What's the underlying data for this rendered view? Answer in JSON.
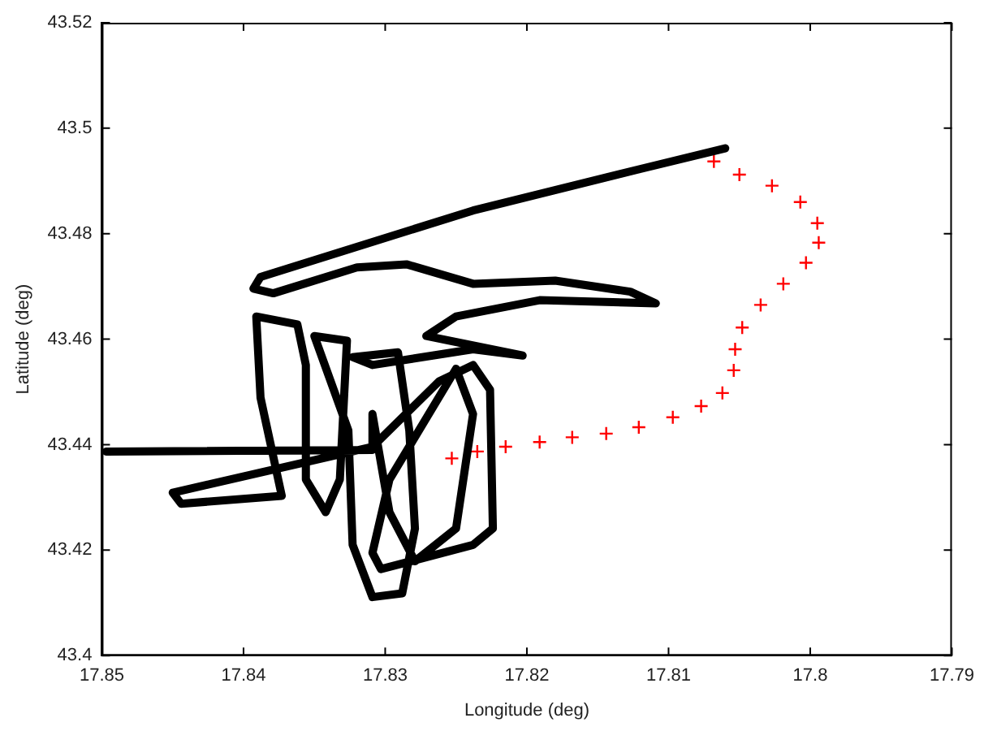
{
  "chart_data": {
    "type": "line",
    "xlabel": "Longitude (deg)",
    "ylabel": "Latitude (deg)",
    "xlim": [
      17.85,
      17.79
    ],
    "xticks": [
      17.85,
      17.84,
      17.83,
      17.82,
      17.81,
      17.8,
      17.79
    ],
    "ylim": [
      43.4,
      43.52
    ],
    "yticks": [
      43.4,
      43.42,
      43.44,
      43.46,
      43.48,
      43.5,
      43.52
    ],
    "grid": false,
    "legend": false,
    "series": [
      {
        "type": "line",
        "color": "#000000",
        "marker": "none",
        "x": [
          17.806,
          17.8121,
          17.8238,
          17.8388,
          17.8393,
          17.8379,
          17.832,
          17.8285,
          17.8238,
          17.818,
          17.8127,
          17.8109,
          17.8191,
          17.825,
          17.8271,
          17.8203,
          17.8238,
          17.8309,
          17.8323,
          17.8291,
          17.8283,
          17.8279,
          17.8288,
          17.8309,
          17.8323,
          17.8326,
          17.835,
          17.8327,
          17.8332,
          17.8342,
          17.8356,
          17.8356,
          17.8362,
          17.8391,
          17.8388,
          17.8373,
          17.8444,
          17.845,
          17.8309,
          17.8262,
          17.8238,
          17.8226,
          17.8224,
          17.8238,
          17.8303,
          17.8309,
          17.8297,
          17.825,
          17.8238,
          17.825,
          17.8279,
          17.8297,
          17.8309,
          17.8309,
          17.8497
        ],
        "values": [
          43.4962,
          43.4922,
          43.4844,
          43.4718,
          43.4696,
          43.4687,
          43.4736,
          43.4742,
          43.4705,
          43.4711,
          43.469,
          43.4668,
          43.4674,
          43.4643,
          43.4606,
          43.4569,
          43.4581,
          43.4551,
          43.4566,
          43.4575,
          43.4427,
          43.4241,
          43.4118,
          43.4111,
          43.421,
          43.4427,
          43.4606,
          43.4597,
          43.4334,
          43.4272,
          43.4334,
          43.4551,
          43.4628,
          43.4643,
          43.4489,
          43.4303,
          43.4288,
          43.4309,
          43.4396,
          43.452,
          43.4551,
          43.4504,
          43.4241,
          43.421,
          43.4164,
          43.4195,
          43.4334,
          43.4544,
          43.4458,
          43.4241,
          43.4179,
          43.4272,
          43.4458,
          43.439,
          43.4387
        ]
      },
      {
        "type": "scatter",
        "color": "#ff0000",
        "marker": "cross",
        "x": [
          17.8068,
          17.805,
          17.8027,
          17.8007,
          17.7995,
          17.7994,
          17.8003,
          17.8019,
          17.8035,
          17.8048,
          17.8053,
          17.8054,
          17.8062,
          17.8077,
          17.8097,
          17.8121,
          17.8144,
          17.8168,
          17.8191,
          17.8215,
          17.8235,
          17.8253
        ],
        "values": [
          43.4937,
          43.4912,
          43.4891,
          43.486,
          43.482,
          43.4783,
          43.4745,
          43.4705,
          43.4665,
          43.4622,
          43.4581,
          43.4541,
          43.4498,
          43.4473,
          43.4452,
          43.4433,
          43.4421,
          43.4414,
          43.4405,
          43.4396,
          43.4387,
          43.4374
        ]
      }
    ]
  }
}
